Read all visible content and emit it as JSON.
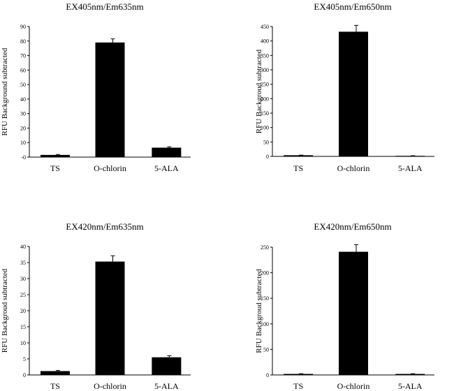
{
  "chart_data": [
    {
      "type": "bar",
      "title": "EX405nm/Em635nm",
      "ylabel": "RFU Background subtracted",
      "xlabel": "",
      "categories": [
        "TS",
        "O-chlorin",
        "5-ALA"
      ],
      "values": [
        1.5,
        79,
        6.5
      ],
      "errors": [
        0.3,
        2.5,
        0.6
      ],
      "ylim": [
        0,
        90
      ],
      "yticks": [
        0,
        10,
        20,
        30,
        40,
        50,
        60,
        70,
        80,
        90
      ],
      "ytick_labels": [
        "-0",
        "10",
        "20",
        "30",
        "40",
        "50",
        "60",
        "70",
        "80",
        "90"
      ],
      "bar_color": "#000000",
      "grid": false
    },
    {
      "type": "bar",
      "title": "EX405nm/Em650nm",
      "ylabel": "RFU Backgroud subtracted",
      "xlabel": "",
      "categories": [
        "TS",
        "O-chlorin",
        "5-ALA"
      ],
      "values": [
        4,
        432,
        2
      ],
      "errors": [
        0.5,
        22,
        0.5
      ],
      "ylim": [
        0,
        450
      ],
      "yticks": [
        0,
        50,
        100,
        150,
        200,
        250,
        300,
        350,
        400,
        450
      ],
      "ytick_labels": [
        "0",
        "50",
        "100",
        "150",
        "200",
        "250",
        "300",
        "350",
        "400",
        "450"
      ],
      "bar_color": "#000000",
      "grid": false
    },
    {
      "type": "bar",
      "title": "EX420nm/Em635nm",
      "ylabel": "RFU Backgroud subtracted",
      "xlabel": "",
      "categories": [
        "TS",
        "O-chlorin",
        "5-ALA"
      ],
      "values": [
        1.2,
        35.3,
        5.5
      ],
      "errors": [
        0.2,
        1.8,
        0.5
      ],
      "ylim": [
        0,
        40
      ],
      "yticks": [
        0,
        5,
        10,
        15,
        20,
        25,
        30,
        35,
        40
      ],
      "ytick_labels": [
        "0",
        "5",
        "10",
        "15",
        "20",
        "25",
        "30",
        "35",
        "40"
      ],
      "bar_color": "#000000",
      "grid": false
    },
    {
      "type": "bar",
      "title": "EX420nm/Em650nm",
      "ylabel": "RFU Backgroud subtracted",
      "xlabel": "",
      "categories": [
        "TS",
        "O-chlorin",
        "5-ALA"
      ],
      "values": [
        2,
        241,
        2
      ],
      "errors": [
        0.4,
        14,
        0.4
      ],
      "ylim": [
        0,
        250
      ],
      "yticks": [
        0,
        50,
        100,
        150,
        200,
        250
      ],
      "ytick_labels": [
        "0",
        "50",
        "100",
        "150",
        "200",
        "250"
      ],
      "bar_color": "#000000",
      "grid": false
    }
  ]
}
